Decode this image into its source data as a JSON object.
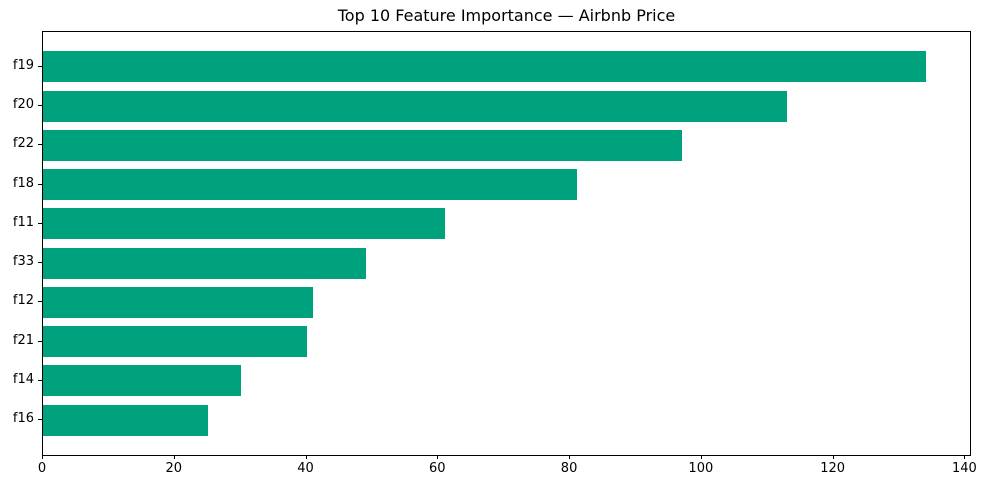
{
  "chart_data": {
    "type": "bar",
    "orientation": "horizontal",
    "title": "Top 10 Feature Importance — Airbnb Price",
    "categories": [
      "f19",
      "f20",
      "f22",
      "f18",
      "f11",
      "f33",
      "f12",
      "f21",
      "f14",
      "f16"
    ],
    "values": [
      134,
      113,
      97,
      81,
      61,
      49,
      41,
      40,
      30,
      25
    ],
    "xlabel": "",
    "ylabel": "",
    "xlim": [
      0,
      140.7
    ],
    "x_ticks": [
      0,
      20,
      40,
      60,
      80,
      100,
      120,
      140
    ],
    "bar_color": "#00A27D",
    "spine_color": "#000000",
    "grid": false,
    "legend": null
  }
}
